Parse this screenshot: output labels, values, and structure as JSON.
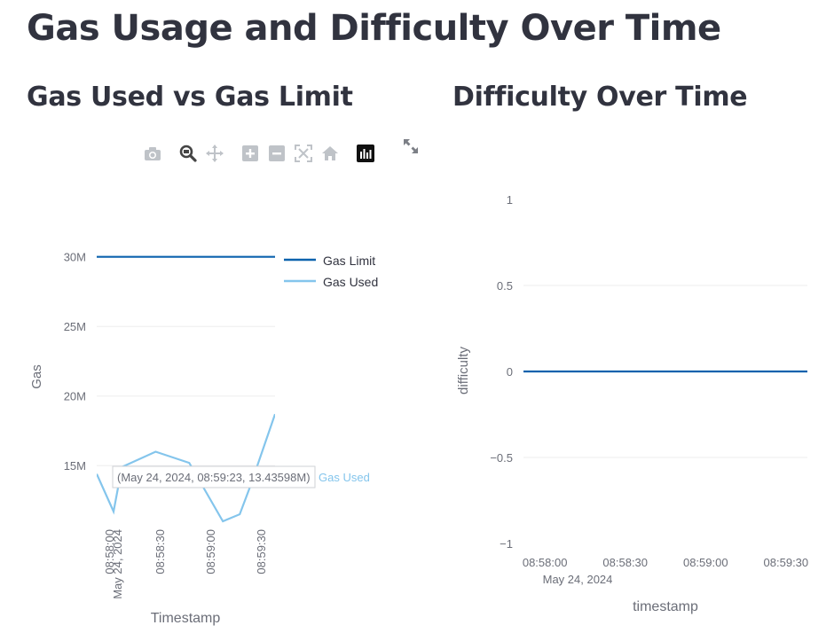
{
  "page": {
    "title": "Gas Usage and Difficulty Over Time"
  },
  "sections": {
    "gas": {
      "title": "Gas Used vs Gas Limit"
    },
    "difficulty": {
      "title": "Difficulty Over Time"
    }
  },
  "toolbar": {
    "icons": [
      "camera-icon",
      "zoom-icon",
      "pan-icon",
      "zoom-in-icon",
      "zoom-out-icon",
      "autoscale-icon",
      "reset-axes-icon",
      "plotly-logo-icon"
    ],
    "expand_icon": "fullscreen-icon"
  },
  "colors": {
    "gas_limit": "#0b62ad",
    "gas_used": "#84c5ec",
    "difficulty": "#0b62ad",
    "grid": "#eeeeee",
    "text": "#31333f",
    "muted": "#6b6e78"
  },
  "chart_data": [
    {
      "type": "line",
      "title": "",
      "xlabel": "Timestamp",
      "ylabel": "Gas",
      "x_ticks": [
        "08:58:00",
        "08:58:30",
        "08:59:00",
        "08:59:30"
      ],
      "x_date_label": "May 24, 2024",
      "y_ticks": [
        "15M",
        "20M",
        "25M",
        "30M"
      ],
      "y_tick_values": [
        15000000,
        20000000,
        25000000,
        30000000
      ],
      "xlim": [
        "2024-05-24 08:57:52",
        "2024-05-24 08:59:38"
      ],
      "ylim": [
        11000000,
        31000000
      ],
      "grid": true,
      "legend": "top-right",
      "series": [
        {
          "name": "Gas Limit",
          "x": [
            "2024-05-24 08:57:52",
            "2024-05-24 08:59:38"
          ],
          "values": [
            30000000,
            30000000
          ]
        },
        {
          "name": "Gas Used",
          "x": [
            "2024-05-24 08:57:52",
            "2024-05-24 08:58:02",
            "2024-05-24 08:58:07",
            "2024-05-24 08:58:27",
            "2024-05-24 08:58:47",
            "2024-05-24 08:59:07",
            "2024-05-24 08:59:17",
            "2024-05-24 08:59:23",
            "2024-05-24 08:59:38"
          ],
          "values": [
            14400000,
            11700000,
            14900000,
            16000000,
            15200000,
            11000000,
            11500000,
            13435980,
            18700000
          ]
        }
      ],
      "hover": {
        "text": "(May 24, 2024, 08:59:23, 13.43598M)",
        "series": "Gas Used"
      }
    },
    {
      "type": "line",
      "title": "",
      "xlabel": "timestamp",
      "ylabel": "difficulty",
      "x_ticks": [
        "08:58:00",
        "08:58:30",
        "08:59:00",
        "08:59:30"
      ],
      "x_date_label": "May 24, 2024",
      "y_ticks": [
        "−1",
        "−0.5",
        "0",
        "0.5",
        "1"
      ],
      "y_tick_values": [
        -1,
        -0.5,
        0,
        0.5,
        1
      ],
      "xlim": [
        "2024-05-24 08:57:52",
        "2024-05-24 08:59:38"
      ],
      "ylim": [
        -1,
        1
      ],
      "grid": true,
      "series": [
        {
          "x": [
            "2024-05-24 08:57:52",
            "2024-05-24 08:59:38"
          ],
          "values": [
            0,
            0
          ]
        }
      ]
    }
  ]
}
